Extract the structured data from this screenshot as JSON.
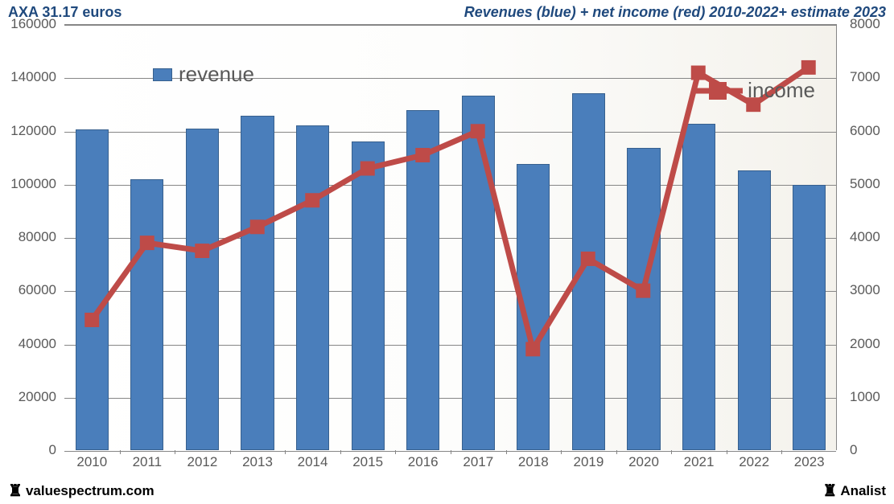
{
  "header": {
    "left": "AXA 31.17 euros",
    "right": "Revenues (blue) + net income (red) 2010-2022+ estimate 2023"
  },
  "chart": {
    "type": "bar+line-dual-axis",
    "background_gradient": [
      "#ffffff",
      "#f4f2ec"
    ],
    "grid_color": "#868686",
    "axis_label_color": "#595959",
    "axis_fontsize": 17,
    "x_categories": [
      "2010",
      "2011",
      "2012",
      "2013",
      "2014",
      "2015",
      "2016",
      "2017",
      "2018",
      "2019",
      "2020",
      "2021",
      "2022",
      "2023"
    ],
    "y_left": {
      "min": 0,
      "max": 160000,
      "step": 20000
    },
    "y_right": {
      "min": 0,
      "max": 8000,
      "step": 1000
    },
    "bars": {
      "label": "revenue",
      "color": "#4a7ebb",
      "border_color": "#37608e",
      "width_ratio": 0.6,
      "values": [
        120500,
        101800,
        120800,
        125500,
        122000,
        116000,
        127800,
        133000,
        107500,
        134000,
        113500,
        122500,
        105000,
        99500
      ]
    },
    "line": {
      "label": "income",
      "color": "#be4b48",
      "line_width": 7,
      "marker_size": 18,
      "marker_shape": "square",
      "values": [
        2450,
        3900,
        3750,
        4200,
        4700,
        5300,
        5550,
        6000,
        1900,
        3600,
        3000,
        7100,
        6500,
        7200
      ]
    },
    "legend": {
      "revenue_pos": "top-left-inside",
      "income_pos": "top-right-inside",
      "fontsize": 26
    }
  },
  "footer": {
    "left": "valuespectrum.com",
    "right": "Analist",
    "icon_glyph": "♜"
  }
}
